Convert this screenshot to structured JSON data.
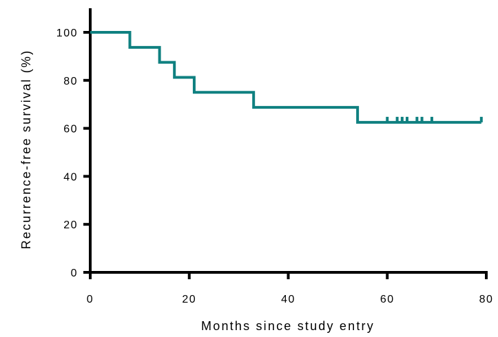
{
  "chart_data": {
    "type": "line",
    "subtype": "kaplan-meier-step",
    "title": "",
    "xlabel": "Months since study entry",
    "ylabel": "Recurrence-free survival (%)",
    "xlim": [
      0,
      80
    ],
    "ylim": [
      0,
      110
    ],
    "x_ticks": [
      0,
      20,
      40,
      60,
      80
    ],
    "y_ticks": [
      0,
      20,
      40,
      60,
      80,
      100
    ],
    "x_tick_labels": [
      "0",
      "20",
      "40",
      "60",
      "80"
    ],
    "y_tick_labels": [
      "0",
      "20",
      "40",
      "60",
      "80",
      "100"
    ],
    "grid": false,
    "legend": "none",
    "series": [
      {
        "color": "#0f8080",
        "steps": [
          {
            "x": 0,
            "y": 100
          },
          {
            "x": 8,
            "y": 93.75
          },
          {
            "x": 14,
            "y": 87.5
          },
          {
            "x": 17,
            "y": 81.25
          },
          {
            "x": 21,
            "y": 75
          },
          {
            "x": 33,
            "y": 68.75
          },
          {
            "x": 54,
            "y": 62.5
          }
        ],
        "end_x": 79,
        "censored_x": [
          60,
          62,
          63,
          64,
          66,
          67,
          69,
          79
        ]
      }
    ]
  }
}
